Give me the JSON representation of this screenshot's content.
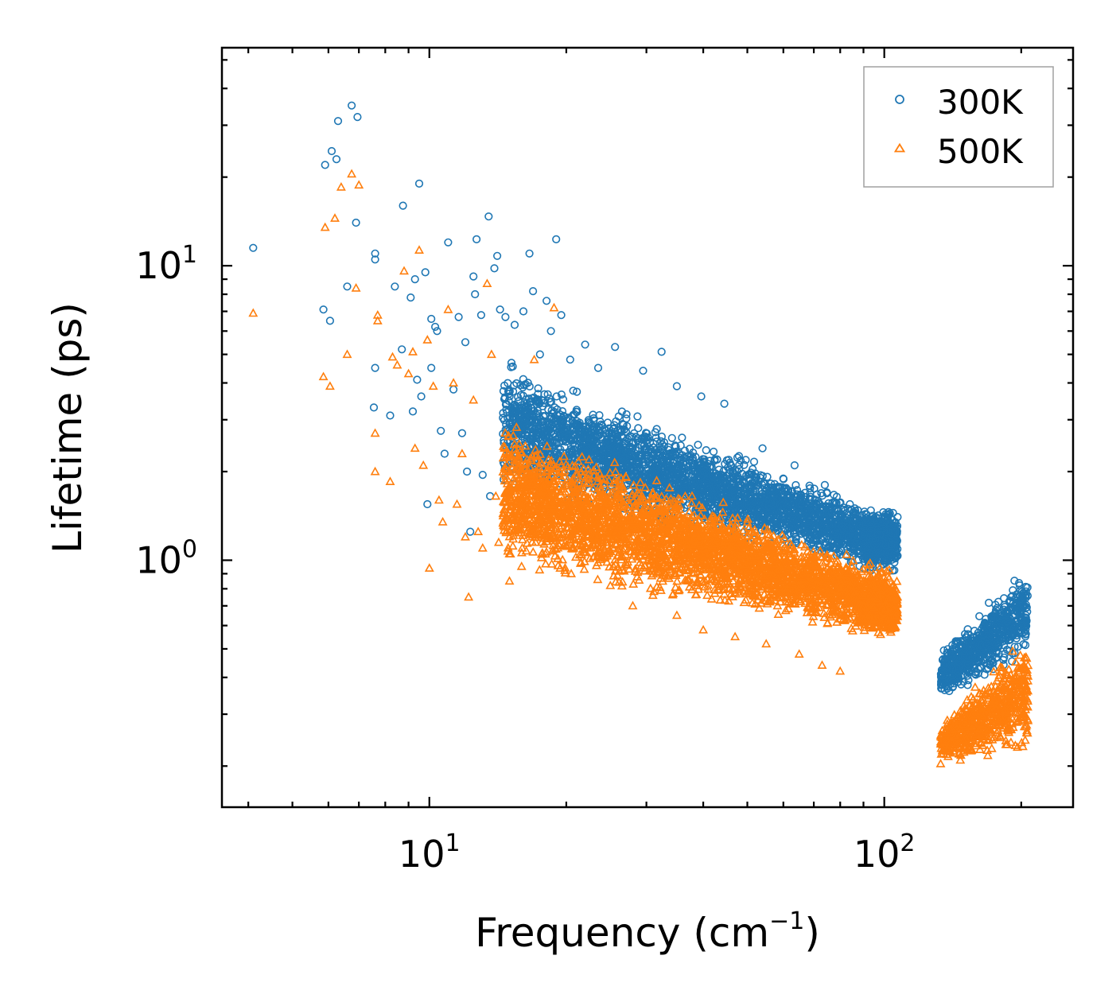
{
  "chart_data": {
    "type": "scatter",
    "xscale": "log",
    "yscale": "log",
    "xlim": [
      3.5,
      260
    ],
    "ylim": [
      0.145,
      55
    ],
    "xlabel": "Frequency",
    "xlabel_unit": "(cm",
    "xlabel_unit_sup": "−1",
    "xlabel_close": ")",
    "ylabel": "Lifetime (ps)",
    "x_ticks": [
      {
        "value": 10,
        "base": "10",
        "exp": "1"
      },
      {
        "value": 100,
        "base": "10",
        "exp": "2"
      }
    ],
    "y_ticks": [
      {
        "value": 1,
        "base": "10",
        "exp": "0"
      },
      {
        "value": 10,
        "base": "10",
        "exp": "1"
      }
    ],
    "legend": {
      "position": "top-right"
    },
    "series": [
      {
        "name": "300K",
        "color": "#1f77b4",
        "marker": "circle-open",
        "points": [
          [
            4.1,
            11.5
          ],
          [
            5.85,
            7.1
          ],
          [
            5.9,
            22
          ],
          [
            6.05,
            6.5
          ],
          [
            6.1,
            24.5
          ],
          [
            6.25,
            23
          ],
          [
            6.3,
            31
          ],
          [
            6.6,
            8.5
          ],
          [
            6.75,
            35
          ],
          [
            6.9,
            14
          ],
          [
            6.95,
            32
          ],
          [
            7.6,
            11
          ],
          [
            7.6,
            10.5
          ],
          [
            7.6,
            4.5
          ],
          [
            7.55,
            3.3
          ],
          [
            8.2,
            3.1
          ],
          [
            8.4,
            8.5
          ],
          [
            8.75,
            16
          ],
          [
            8.7,
            5.2
          ],
          [
            9.1,
            7.8
          ],
          [
            9.2,
            3.2
          ],
          [
            9.3,
            9
          ],
          [
            9.4,
            4.1
          ],
          [
            9.5,
            19
          ],
          [
            9.6,
            3.6
          ],
          [
            9.8,
            9.5
          ],
          [
            9.9,
            1.55
          ],
          [
            10.1,
            6.6
          ],
          [
            10.1,
            4.5
          ],
          [
            10.3,
            6.2
          ],
          [
            10.4,
            6.0
          ],
          [
            10.6,
            2.75
          ],
          [
            10.8,
            2.3
          ],
          [
            11.0,
            12
          ],
          [
            11.3,
            3.8
          ],
          [
            11.6,
            6.7
          ],
          [
            11.8,
            2.7
          ],
          [
            12.0,
            5.5
          ],
          [
            12.1,
            2.0
          ],
          [
            12.3,
            1.25
          ],
          [
            12.5,
            9.2
          ],
          [
            12.6,
            8
          ],
          [
            12.7,
            12.3
          ],
          [
            13.0,
            6.8
          ],
          [
            13.1,
            1.95
          ],
          [
            13.5,
            14.7
          ],
          [
            13.6,
            1.65
          ],
          [
            13.9,
            9.8
          ],
          [
            14.1,
            10.8
          ],
          [
            14.3,
            7.1
          ],
          [
            14.7,
            6.7
          ],
          [
            15.2,
            2.6
          ],
          [
            15.4,
            6.3
          ],
          [
            16.1,
            7.0
          ],
          [
            16.6,
            11
          ],
          [
            16.9,
            8.2
          ],
          [
            17.5,
            5.0
          ],
          [
            18.1,
            7.6
          ],
          [
            18.5,
            6.0
          ],
          [
            19.0,
            12.3
          ],
          [
            19.5,
            6.8
          ],
          [
            20.4,
            4.8
          ],
          [
            22.0,
            5.4
          ],
          [
            23.5,
            4.5
          ],
          [
            25.6,
            5.3
          ],
          [
            29.5,
            4.4
          ],
          [
            32.4,
            5.1
          ],
          [
            35.0,
            3.9
          ],
          [
            39.6,
            3.6
          ],
          [
            44.5,
            3.4
          ],
          [
            54.0,
            2.4
          ],
          [
            63.5,
            2.1
          ],
          [
            74.0,
            1.8
          ],
          [
            84.0,
            1.55
          ]
        ],
        "clusters": [
          {
            "x_range": [
              14.5,
              106
            ],
            "y_start": [
              1.7,
              5.0
            ],
            "y_end": [
              0.85,
              1.45
            ],
            "density": 3200
          },
          {
            "x_range": [
              90,
              107
            ],
            "y_start": [
              0.9,
              1.55
            ],
            "y_end": [
              0.95,
              1.5
            ],
            "density": 400
          },
          {
            "x_range": [
              133,
              207
            ],
            "y_start": [
              0.33,
              0.5
            ],
            "y_end": [
              0.45,
              1.02
            ],
            "density": 700
          }
        ]
      },
      {
        "name": "500K",
        "color": "#ff7f0e",
        "marker": "triangle-open",
        "points": [
          [
            4.1,
            6.9
          ],
          [
            5.85,
            4.2
          ],
          [
            5.9,
            13.5
          ],
          [
            6.05,
            3.9
          ],
          [
            6.2,
            14.5
          ],
          [
            6.4,
            18.5
          ],
          [
            6.6,
            5.0
          ],
          [
            6.75,
            20.5
          ],
          [
            6.9,
            8.4
          ],
          [
            7.0,
            18.8
          ],
          [
            7.6,
            2.0
          ],
          [
            7.6,
            2.7
          ],
          [
            7.7,
            6.5
          ],
          [
            7.7,
            6.8
          ],
          [
            8.2,
            1.85
          ],
          [
            8.3,
            4.9
          ],
          [
            8.5,
            4.6
          ],
          [
            8.8,
            9.6
          ],
          [
            9.0,
            4.3
          ],
          [
            9.2,
            5.1
          ],
          [
            9.3,
            2.4
          ],
          [
            9.5,
            11.3
          ],
          [
            9.7,
            2.1
          ],
          [
            9.9,
            5.6
          ],
          [
            10.0,
            0.94
          ],
          [
            10.2,
            3.9
          ],
          [
            10.5,
            1.6
          ],
          [
            10.7,
            1.35
          ],
          [
            11.0,
            7.1
          ],
          [
            11.3,
            4.0
          ],
          [
            11.5,
            1.55
          ],
          [
            11.8,
            2.3
          ],
          [
            12.0,
            1.2
          ],
          [
            12.2,
            0.75
          ],
          [
            12.5,
            3.5
          ],
          [
            12.8,
            1.25
          ],
          [
            13.1,
            1.1
          ],
          [
            13.4,
            8.7
          ],
          [
            13.7,
            5.0
          ],
          [
            14.0,
            1.65
          ],
          [
            14.2,
            1.15
          ],
          [
            14.6,
            1.3
          ],
          [
            15.0,
            0.85
          ],
          [
            15.5,
            1.4
          ],
          [
            16.0,
            1.1
          ],
          [
            17.0,
            4.8
          ],
          [
            18.0,
            1.05
          ],
          [
            18.8,
            7.2
          ],
          [
            19.5,
            1.2
          ],
          [
            20.5,
            0.9
          ],
          [
            22.5,
            1.1
          ],
          [
            25.0,
            0.82
          ],
          [
            28.0,
            0.7
          ],
          [
            31.0,
            0.76
          ],
          [
            35.0,
            0.65
          ],
          [
            40.0,
            0.58
          ],
          [
            47.0,
            0.55
          ],
          [
            55.0,
            0.52
          ],
          [
            65.0,
            0.48
          ],
          [
            73.0,
            0.44
          ],
          [
            80.0,
            0.42
          ]
        ],
        "clusters": [
          {
            "x_range": [
              14.5,
              106
            ],
            "y_start": [
              0.9,
              3.2
            ],
            "y_end": [
              0.52,
              0.95
            ],
            "density": 3500
          },
          {
            "x_range": [
              88,
              107
            ],
            "y_start": [
              0.55,
              0.85
            ],
            "y_end": [
              0.55,
              0.9
            ],
            "density": 400
          },
          {
            "x_range": [
              133,
              207
            ],
            "y_start": [
              0.2,
              0.28
            ],
            "y_end": [
              0.21,
              0.62
            ],
            "density": 700
          }
        ]
      }
    ]
  }
}
